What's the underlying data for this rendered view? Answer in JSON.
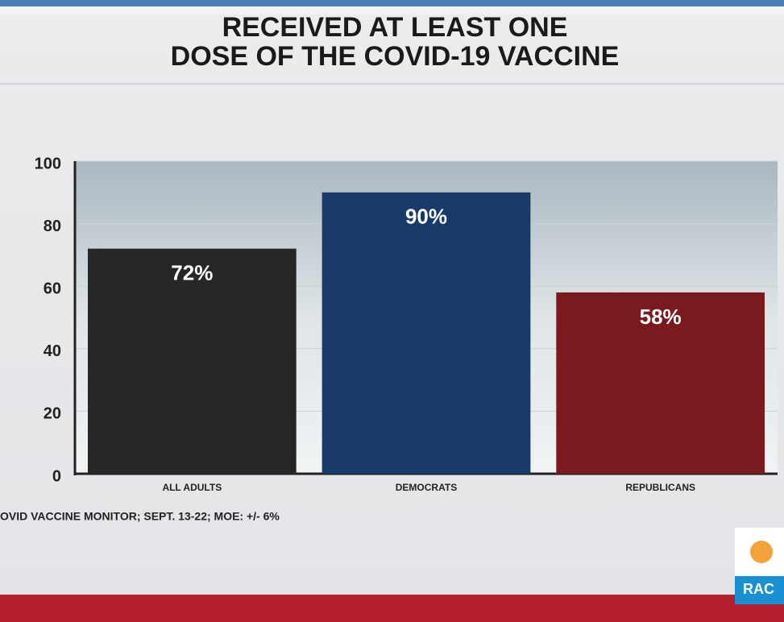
{
  "chart_data": {
    "type": "bar",
    "title": [
      "RECEIVED AT LEAST ONE",
      "DOSE OF THE COVID-19 VACCINE"
    ],
    "categories": [
      "ALL ADULTS",
      "DEMOCRATS",
      "REPUBLICANS"
    ],
    "values": [
      72,
      90,
      58
    ],
    "value_labels": [
      "72%",
      "90%",
      "58%"
    ],
    "colors": [
      "#262626",
      "#173a6b",
      "#7a1a1e"
    ],
    "ylim": [
      0,
      100
    ],
    "yticks": [
      0,
      20,
      40,
      60,
      80,
      100
    ],
    "grid": true,
    "source": "OVID VACCINE MONITOR; SEPT. 13-22; MOE: +/- 6%",
    "logo_text": "RAC"
  }
}
